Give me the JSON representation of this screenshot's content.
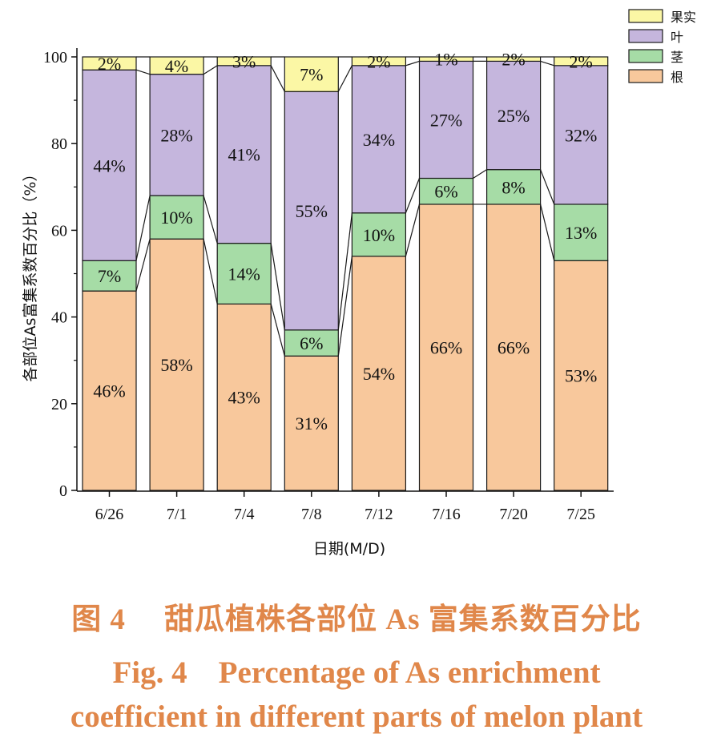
{
  "chart_data": {
    "type": "bar",
    "stacked": true,
    "ylabel": "各部位As富集系数百分比（%）",
    "xlabel": "日期(M/D)",
    "ylim": [
      0,
      100
    ],
    "yticks": [
      0,
      20,
      40,
      60,
      80,
      100
    ],
    "categories": [
      "6/26",
      "7/1",
      "7/4",
      "7/8",
      "7/12",
      "7/16",
      "7/20",
      "7/25"
    ],
    "series": [
      {
        "name": "根",
        "color": "#f8c89c",
        "values": [
          46,
          58,
          43,
          31,
          54,
          66,
          66,
          53
        ],
        "labels": [
          "46%",
          "58%",
          "43%",
          "31%",
          "54%",
          "66%",
          "66%",
          "53%"
        ]
      },
      {
        "name": "茎",
        "color": "#a6dca6",
        "values": [
          7,
          10,
          14,
          6,
          10,
          6,
          8,
          13
        ],
        "labels": [
          "7%",
          "10%",
          "14%",
          "6%",
          "10%",
          "6%",
          "8%",
          "13%"
        ]
      },
      {
        "name": "叶",
        "color": "#c5b6dd",
        "values": [
          44,
          28,
          41,
          55,
          34,
          27,
          25,
          32
        ],
        "labels": [
          "44%",
          "28%",
          "41%",
          "55%",
          "34%",
          "27%",
          "25%",
          "32%"
        ]
      },
      {
        "name": "果实",
        "color": "#fbf7a5",
        "values": [
          2,
          4,
          3,
          7,
          2,
          1,
          2,
          2
        ],
        "labels": [
          "2%",
          "4%",
          "3%",
          "7%",
          "2%",
          "1%",
          "2%",
          "2%"
        ]
      }
    ],
    "legend_position": "top-right",
    "grid": false
  },
  "caption": {
    "cn": "图 4　 甜瓜植株各部位 As 富集系数百分比",
    "en_line1": "Fig. 4　Percentage of As enrichment",
    "en_line2": "coefficient in different parts of melon plant"
  }
}
